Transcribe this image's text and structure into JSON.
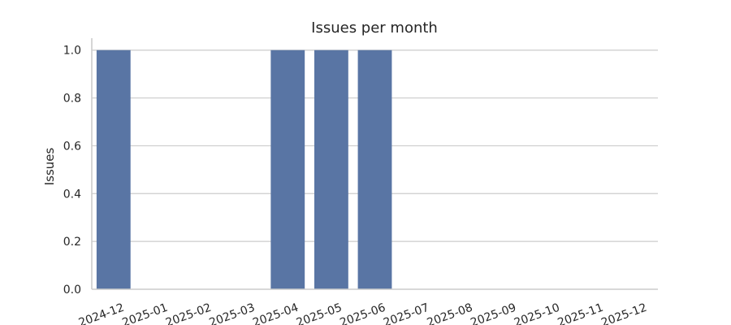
{
  "chart_data": {
    "type": "bar",
    "title": "Issues per month",
    "xlabel": "",
    "ylabel": "Issues",
    "categories": [
      "2024-12",
      "2025-01",
      "2025-02",
      "2025-03",
      "2025-04",
      "2025-05",
      "2025-06",
      "2025-07",
      "2025-08",
      "2025-09",
      "2025-10",
      "2025-11",
      "2025-12"
    ],
    "values": [
      1,
      0,
      0,
      0,
      1,
      1,
      1,
      0,
      0,
      0,
      0,
      0,
      0
    ],
    "ylim": [
      0,
      1.05
    ],
    "yticks": [
      "0.0",
      "0.2",
      "0.4",
      "0.6",
      "0.8",
      "1.0"
    ],
    "grid": "horizontal",
    "bar_color": "#5975a4",
    "grid_color": "#cccccc"
  }
}
